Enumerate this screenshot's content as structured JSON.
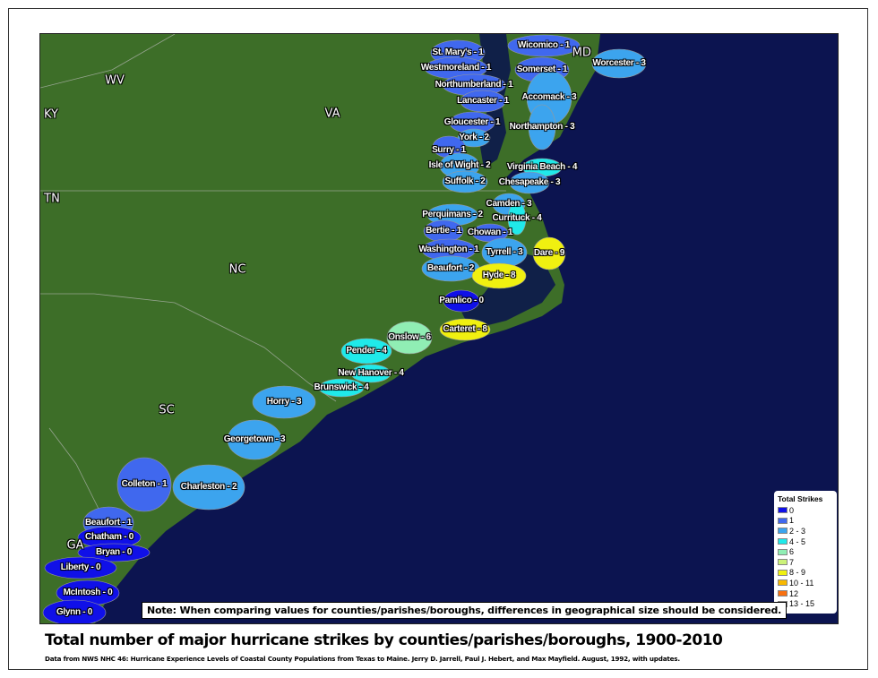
{
  "title": "Total number of major hurricane strikes by counties/parishes/boroughs, 1900-2010",
  "source": "Data from NWS NHC 46: Hurricane Experience Levels of Coastal County Populations from Texas to Maine. Jerry D. Jarrell, Paul J. Hebert, and Max Mayfield. August, 1992, with updates.",
  "note": "Note: When comparing values for counties/parishes/boroughs, differences in geographical size should be considered.",
  "legend": {
    "title": "Total Strikes",
    "items": [
      {
        "label": "0",
        "color": "#1010e8"
      },
      {
        "label": "1",
        "color": "#4068ee"
      },
      {
        "label": "2 - 3",
        "color": "#3ca4ee"
      },
      {
        "label": "4 - 5",
        "color": "#20eaea"
      },
      {
        "label": "6",
        "color": "#90eeb4"
      },
      {
        "label": "7",
        "color": "#ccf27a"
      },
      {
        "label": "8 - 9",
        "color": "#f0f010"
      },
      {
        "label": "10 - 11",
        "color": "#f8b800"
      },
      {
        "label": "12",
        "color": "#f87010"
      },
      {
        "label": "13 - 15",
        "color": "#f01010"
      }
    ]
  },
  "colors": {
    "ocean": "#0c1450",
    "land": "#3d6e28",
    "bay": "#102048"
  },
  "states": [
    "WV",
    "VA",
    "KY",
    "TN",
    "NC",
    "SC",
    "MD",
    "GA"
  ],
  "counties": [
    {
      "label": "St. Mary's - 1",
      "strikes": 1
    },
    {
      "label": "Wicomico - 1",
      "strikes": 1
    },
    {
      "label": "Worcester - 3",
      "strikes": 3
    },
    {
      "label": "Westmoreland - 1",
      "strikes": 1
    },
    {
      "label": "Somerset - 1",
      "strikes": 1
    },
    {
      "label": "Northumberland - 1",
      "strikes": 1
    },
    {
      "label": "Accomack - 3",
      "strikes": 3
    },
    {
      "label": "Lancaster - 1",
      "strikes": 1
    },
    {
      "label": "Gloucester - 1",
      "strikes": 1
    },
    {
      "label": "Northampton - 3",
      "strikes": 3
    },
    {
      "label": "York - 2",
      "strikes": 2
    },
    {
      "label": "Surry - 1",
      "strikes": 1
    },
    {
      "label": "Isle of Wight - 2",
      "strikes": 2
    },
    {
      "label": "Virginia Beach - 4",
      "strikes": 4
    },
    {
      "label": "Suffolk - 2",
      "strikes": 2
    },
    {
      "label": "Chesapeake - 3",
      "strikes": 3
    },
    {
      "label": "Camden - 3",
      "strikes": 3
    },
    {
      "label": "Perquimans - 2",
      "strikes": 2
    },
    {
      "label": "Currituck - 4",
      "strikes": 4
    },
    {
      "label": "Bertie - 1",
      "strikes": 1
    },
    {
      "label": "Chowan - 1",
      "strikes": 1
    },
    {
      "label": "Washington - 1",
      "strikes": 1
    },
    {
      "label": "Tyrrell - 3",
      "strikes": 3
    },
    {
      "label": "Dare - 9",
      "strikes": 9
    },
    {
      "label": "Beaufort - 2",
      "strikes": 2
    },
    {
      "label": "Hyde - 8",
      "strikes": 8
    },
    {
      "label": "Pamlico - 0",
      "strikes": 0
    },
    {
      "label": "Carteret - 8",
      "strikes": 8
    },
    {
      "label": "Onslow - 6",
      "strikes": 6
    },
    {
      "label": "Pender - 4",
      "strikes": 4
    },
    {
      "label": "New Hanover - 4",
      "strikes": 4
    },
    {
      "label": "Brunswick - 4",
      "strikes": 4
    },
    {
      "label": "Horry - 3",
      "strikes": 3
    },
    {
      "label": "Georgetown - 3",
      "strikes": 3
    },
    {
      "label": "Colleton - 1",
      "strikes": 1
    },
    {
      "label": "Charleston - 2",
      "strikes": 2
    },
    {
      "label": "Beaufort - 1",
      "strikes": 1
    },
    {
      "label": "Chatham - 0",
      "strikes": 0
    },
    {
      "label": "Bryan - 0",
      "strikes": 0
    },
    {
      "label": "Liberty - 0",
      "strikes": 0
    },
    {
      "label": "McIntosh - 0",
      "strikes": 0
    },
    {
      "label": "Glynn - 0",
      "strikes": 0
    }
  ]
}
